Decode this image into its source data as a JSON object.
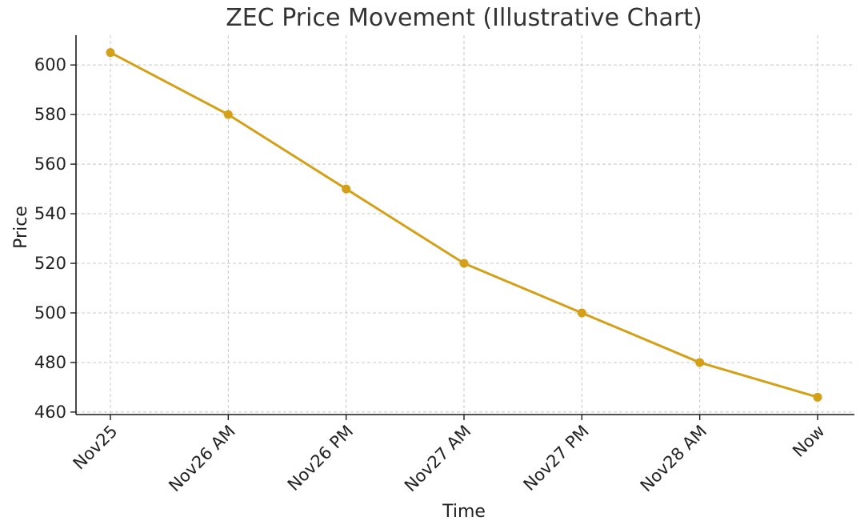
{
  "chart_data": {
    "type": "line",
    "title": "ZEC Price Movement (Illustrative Chart)",
    "xlabel": "Time",
    "ylabel": "Price",
    "categories": [
      "Nov25",
      "Nov26 AM",
      "Nov26 PM",
      "Nov27 AM",
      "Nov27 PM",
      "Nov28 AM",
      "Now"
    ],
    "series": [
      {
        "values": [
          605,
          580,
          550,
          520,
          500,
          480,
          466
        ],
        "color": "#D4A017"
      }
    ],
    "ylim": [
      459,
      612
    ],
    "yticks": [
      460,
      480,
      500,
      520,
      540,
      560,
      580,
      600
    ],
    "grid": true,
    "x_tick_rotation_deg": 45
  }
}
